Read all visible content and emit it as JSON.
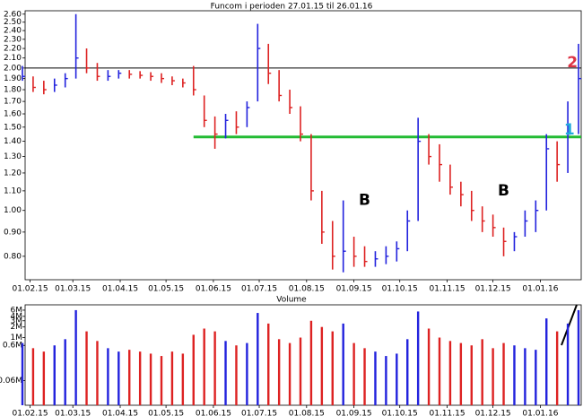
{
  "chart_data": {
    "type": "ohlc",
    "title": "Funcom i perioden 27.01.15 til 26.01.16",
    "volume_title": "Volume",
    "xlim": [
      "27.01.15",
      "26.01.16"
    ],
    "xticks": [
      "01.02.15",
      "01.03.15",
      "01.04.15",
      "01.05.15",
      "01.06.15",
      "01.07.15",
      "01.08.15",
      "01.09.15",
      "01.10.15",
      "01.11.15",
      "01.12.15",
      "01.01.16"
    ],
    "x": [
      "27.01.15",
      "03.02.15",
      "10.02.15",
      "17.02.15",
      "24.02.15",
      "03.03.15",
      "10.03.15",
      "17.03.15",
      "24.03.15",
      "31.03.15",
      "07.04.15",
      "14.04.15",
      "21.04.15",
      "28.04.15",
      "05.05.15",
      "12.05.15",
      "19.05.15",
      "26.05.15",
      "02.06.15",
      "09.06.15",
      "16.06.15",
      "23.06.15",
      "30.06.15",
      "07.07.15",
      "14.07.15",
      "21.07.15",
      "28.07.15",
      "04.08.15",
      "11.08.15",
      "18.08.15",
      "25.08.15",
      "01.09.15",
      "08.09.15",
      "15.09.15",
      "22.09.15",
      "29.09.15",
      "06.10.15",
      "13.10.15",
      "20.10.15",
      "27.10.15",
      "03.11.15",
      "10.11.15",
      "17.11.15",
      "24.11.15",
      "01.12.15",
      "08.12.15",
      "15.12.15",
      "22.12.15",
      "29.12.15",
      "05.01.16",
      "12.01.16",
      "19.01.16",
      "26.01.16"
    ],
    "high": [
      2.02,
      1.92,
      1.88,
      1.9,
      1.95,
      2.6,
      2.2,
      2.05,
      1.98,
      1.98,
      1.98,
      1.97,
      1.96,
      1.95,
      1.92,
      1.9,
      2.02,
      1.75,
      1.58,
      1.6,
      1.62,
      1.7,
      2.48,
      2.25,
      1.98,
      1.8,
      1.66,
      1.45,
      1.1,
      0.95,
      1.05,
      0.88,
      0.84,
      0.82,
      0.84,
      0.86,
      1.0,
      1.57,
      1.45,
      1.38,
      1.25,
      1.15,
      1.1,
      1.02,
      0.98,
      0.92,
      0.9,
      1.0,
      1.05,
      1.45,
      1.4,
      1.7,
      2.25
    ],
    "low": [
      1.88,
      1.78,
      1.76,
      1.78,
      1.82,
      1.9,
      1.95,
      1.88,
      1.88,
      1.9,
      1.9,
      1.9,
      1.88,
      1.86,
      1.84,
      1.82,
      1.75,
      1.5,
      1.35,
      1.42,
      1.45,
      1.5,
      1.7,
      1.85,
      1.7,
      1.6,
      1.4,
      1.05,
      0.85,
      0.75,
      0.74,
      0.76,
      0.76,
      0.76,
      0.77,
      0.78,
      0.82,
      0.95,
      1.25,
      1.15,
      1.08,
      1.02,
      0.95,
      0.9,
      0.88,
      0.8,
      0.82,
      0.88,
      0.9,
      1.0,
      1.15,
      1.2,
      1.45
    ],
    "close": [
      1.92,
      1.82,
      1.8,
      1.84,
      1.9,
      2.1,
      2.0,
      1.92,
      1.92,
      1.95,
      1.94,
      1.93,
      1.92,
      1.9,
      1.88,
      1.86,
      1.8,
      1.55,
      1.45,
      1.55,
      1.5,
      1.65,
      2.2,
      1.95,
      1.75,
      1.65,
      1.45,
      1.1,
      0.9,
      0.8,
      0.82,
      0.8,
      0.78,
      0.79,
      0.8,
      0.83,
      0.95,
      1.4,
      1.3,
      1.25,
      1.12,
      1.08,
      1.0,
      0.95,
      0.92,
      0.86,
      0.88,
      0.95,
      1.0,
      1.35,
      1.25,
      1.45,
      1.9
    ],
    "volume": [
      700000,
      500000,
      400000,
      600000,
      900000,
      6000000,
      1500000,
      800000,
      500000,
      400000,
      450000,
      400000,
      350000,
      300000,
      400000,
      350000,
      1200000,
      1800000,
      1500000,
      800000,
      600000,
      700000,
      5000000,
      2500000,
      900000,
      700000,
      1000000,
      3000000,
      2000000,
      1500000,
      2500000,
      700000,
      500000,
      400000,
      300000,
      350000,
      900000,
      5500000,
      1800000,
      1000000,
      800000,
      700000,
      600000,
      900000,
      500000,
      700000,
      600000,
      500000,
      450000,
      3500000,
      1500000,
      2500000,
      6000000
    ],
    "up_color": "#2222dd",
    "down_color": "#dd2222",
    "log_scale": true,
    "ylim": [
      0.72,
      2.62
    ],
    "yticks": [
      {
        "value": 0.8,
        "label": "0.80"
      },
      {
        "value": 0.9,
        "label": "0.90"
      },
      {
        "value": 1.0,
        "label": "1.00"
      },
      {
        "value": 1.1,
        "label": "1.10"
      },
      {
        "value": 1.2,
        "label": "1.20"
      },
      {
        "value": 1.3,
        "label": "1.30"
      },
      {
        "value": 1.4,
        "label": "1.40"
      },
      {
        "value": 1.5,
        "label": "1.50"
      },
      {
        "value": 1.6,
        "label": "1.60"
      },
      {
        "value": 1.7,
        "label": "1.70"
      },
      {
        "value": 1.8,
        "label": "1.80"
      },
      {
        "value": 1.9,
        "label": "1.90"
      },
      {
        "value": 2.0,
        "label": "2.00"
      },
      {
        "value": 2.1,
        "label": "2.10"
      },
      {
        "value": 2.2,
        "label": "2.20"
      },
      {
        "value": 2.3,
        "label": "2.30"
      },
      {
        "value": 2.4,
        "label": "2.40"
      },
      {
        "value": 2.5,
        "label": "2.50"
      },
      {
        "value": 2.6,
        "label": "2.60"
      }
    ],
    "vlim": [
      12000,
      8500000
    ],
    "vticks": [
      {
        "value": 60000,
        "label": "0.06M"
      },
      {
        "value": 600000,
        "label": "0.6M"
      },
      {
        "value": 1000000,
        "label": "1M"
      },
      {
        "value": 2000000,
        "label": "2M"
      },
      {
        "value": 3000000,
        "label": "3M"
      },
      {
        "value": 4000000,
        "label": "4M"
      },
      {
        "value": 6000000,
        "label": "6M"
      }
    ],
    "hlines": [
      {
        "value": 2.0,
        "color": "#000000"
      },
      {
        "value": 1.43,
        "color": "#22bb33",
        "from": "19.05.15"
      }
    ],
    "annotations": [
      {
        "text": "B",
        "x": "08.09.15",
        "y": 1.05,
        "color": "#000000"
      },
      {
        "text": "B",
        "x": "08.12.15",
        "y": 1.1,
        "color": "#000000"
      },
      {
        "text": "2",
        "x": "22.01.16",
        "y": 2.05,
        "color": "#dd3344"
      },
      {
        "text": "1",
        "x": "20.01.16",
        "y": 1.48,
        "color": "#22aadd"
      }
    ]
  }
}
